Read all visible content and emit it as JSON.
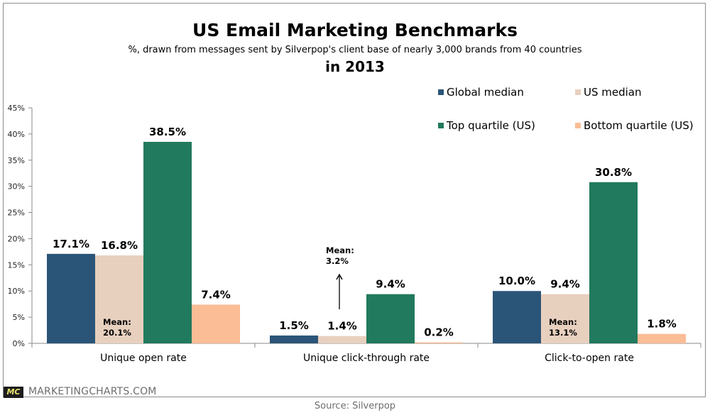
{
  "chart_data": {
    "type": "bar",
    "title": "US Email Marketing Benchmarks",
    "subtitle": "%, drawn from messages sent by Silverpop's client base of nearly 3,000 brands from 40 countries",
    "subtitle2": "in 2013",
    "xlabel": "",
    "ylabel": "",
    "ylim": [
      0,
      45
    ],
    "yticks": [
      0,
      5,
      10,
      15,
      20,
      25,
      30,
      35,
      40,
      45
    ],
    "ytick_labels": [
      "0%",
      "5%",
      "10%",
      "15%",
      "20%",
      "25%",
      "30%",
      "35%",
      "40%",
      "45%"
    ],
    "grid": false,
    "legend_position": "top-right",
    "categories": [
      "Unique open rate",
      "Unique click-through rate",
      "Click-to-open rate"
    ],
    "series": [
      {
        "name": "Global median",
        "color": "#2b5578",
        "values": [
          17.1,
          1.5,
          10.0
        ],
        "labels": [
          "17.1%",
          "1.5%",
          "10.0%"
        ]
      },
      {
        "name": "US median",
        "color": "#e8d0bf",
        "values": [
          16.8,
          1.4,
          9.4
        ],
        "labels": [
          "16.8%",
          "1.4%",
          "9.4%"
        ]
      },
      {
        "name": "Top quartile (US)",
        "color": "#21795e",
        "values": [
          38.5,
          9.4,
          30.8
        ],
        "labels": [
          "38.5%",
          "9.4%",
          "30.8%"
        ]
      },
      {
        "name": "Bottom quartile (US)",
        "color": "#fbbd96",
        "values": [
          7.4,
          0.2,
          1.8
        ],
        "labels": [
          "7.4%",
          "0.2%",
          "1.8%"
        ]
      }
    ],
    "annotations": [
      {
        "category": "Unique open rate",
        "series": "US median",
        "line1": "Mean:",
        "line2": "20.1%",
        "arrow": false
      },
      {
        "category": "Unique click-through rate",
        "series": "US median",
        "line1": "Mean:",
        "line2": "3.2%",
        "arrow": true
      },
      {
        "category": "Click-to-open rate",
        "series": "US median",
        "line1": "Mean:",
        "line2": "13.1%",
        "arrow": false
      }
    ]
  },
  "footer": {
    "logo": "MC",
    "brand": "MARKETINGCHARTS.COM",
    "source": "Source: Silverpop"
  }
}
